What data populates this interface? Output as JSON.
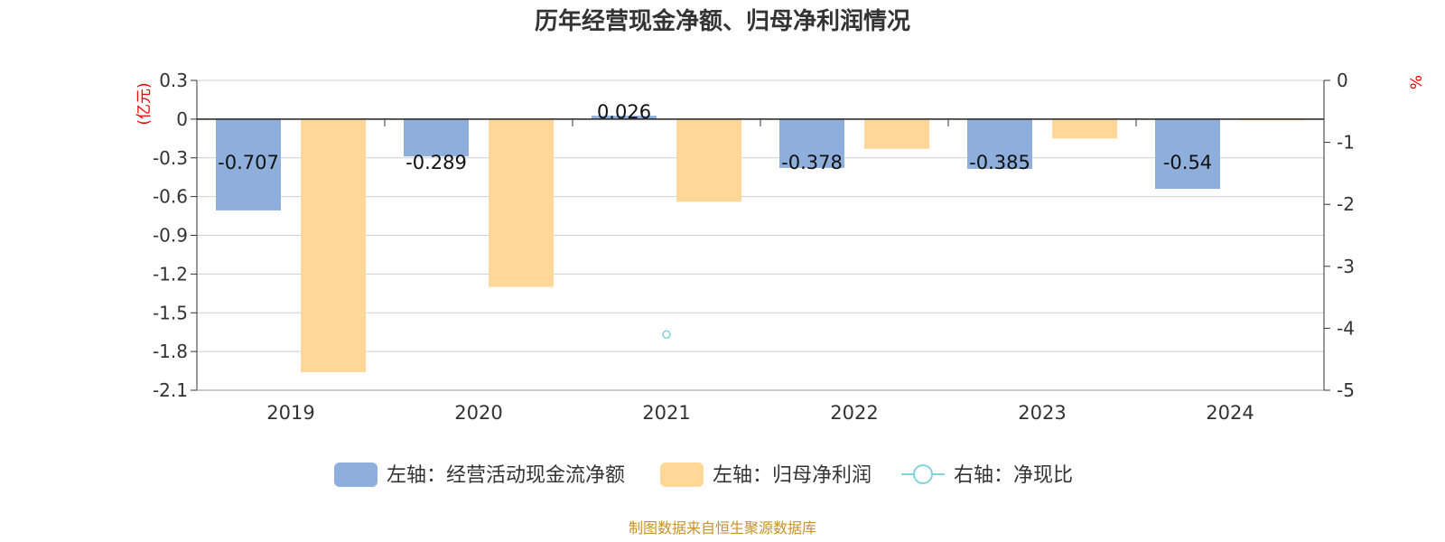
{
  "chart_data": {
    "type": "bar",
    "title": "历年经营现金净额、归母净利润情况",
    "left_unit": "(亿元)",
    "right_unit": "%",
    "categories": [
      "2019",
      "2020",
      "2021",
      "2022",
      "2023",
      "2024"
    ],
    "left_axis": {
      "ylim": [
        -2.1,
        0.3
      ],
      "ticks": [
        "0.3",
        "0",
        "-0.3",
        "-0.6",
        "-0.9",
        "-1.2",
        "-1.5",
        "-1.8",
        "-2.1"
      ]
    },
    "right_axis": {
      "ylim": [
        -5,
        0
      ],
      "ticks": [
        "0",
        "-1",
        "-2",
        "-3",
        "-4",
        "-5"
      ]
    },
    "grid": true,
    "legend_position": "bottom",
    "series": [
      {
        "name": "左轴：经营活动现金流净额",
        "axis": "left",
        "kind": "bar",
        "color": "#8eaedb",
        "values": [
          -0.707,
          -0.289,
          0.026,
          -0.378,
          -0.385,
          -0.54
        ],
        "labels": [
          "-0.707",
          "-0.289",
          "0.026",
          "-0.378",
          "-0.385",
          "-0.54"
        ]
      },
      {
        "name": "左轴：归母净利润",
        "axis": "left",
        "kind": "bar",
        "color": "#ffd898",
        "values": [
          -1.96,
          -1.3,
          -0.64,
          -0.23,
          -0.15,
          -0.01
        ]
      },
      {
        "name": "右轴：净现比",
        "axis": "right",
        "kind": "line",
        "color": "#7fd3e0",
        "values": [
          null,
          null,
          -4.1,
          null,
          null,
          null
        ]
      }
    ]
  },
  "source_text": "制图数据来自恒生聚源数据库"
}
